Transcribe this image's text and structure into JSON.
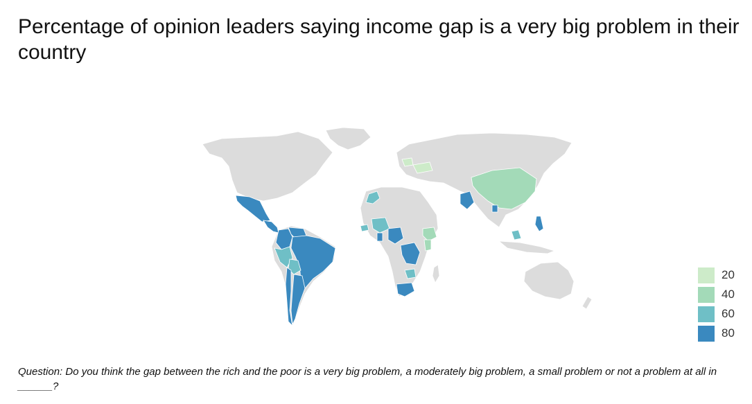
{
  "title": "Percentage of opinion leaders saying income gap is a very big problem in their country",
  "question": "Question: Do you think the gap between the rich and the poor is a very big problem, a moderately big problem, a small problem or not a problem at all in ______?",
  "colors": {
    "no_data": "#dcdcdc",
    "border": "#ffffff",
    "scale": [
      "#cdebc9",
      "#a3dab8",
      "#6fbfc6",
      "#3a89bf"
    ]
  },
  "legend": {
    "items": [
      {
        "label": "20",
        "color": "#cdebc9"
      },
      {
        "label": "40",
        "color": "#a3dab8"
      },
      {
        "label": "60",
        "color": "#6fbfc6"
      },
      {
        "label": "80",
        "color": "#3a89bf"
      }
    ]
  },
  "chart_data": {
    "type": "choropleth",
    "scale_ticks": [
      20,
      40,
      60,
      80
    ],
    "regions": [
      {
        "name": "Mexico",
        "value": 80
      },
      {
        "name": "Central America",
        "value": 80
      },
      {
        "name": "Colombia",
        "value": 80
      },
      {
        "name": "Venezuela",
        "value": 80
      },
      {
        "name": "Brazil",
        "value": 80
      },
      {
        "name": "Peru",
        "value": 60
      },
      {
        "name": "Bolivia",
        "value": 60
      },
      {
        "name": "Argentina",
        "value": 80
      },
      {
        "name": "Chile",
        "value": 80
      },
      {
        "name": "Nigeria",
        "value": 80
      },
      {
        "name": "DR Congo",
        "value": 80
      },
      {
        "name": "Senegal",
        "value": 60
      },
      {
        "name": "Mali",
        "value": 60
      },
      {
        "name": "Ghana",
        "value": 80
      },
      {
        "name": "Morocco",
        "value": 60
      },
      {
        "name": "Ethiopia",
        "value": 40
      },
      {
        "name": "Kenya",
        "value": 40
      },
      {
        "name": "South Africa",
        "value": 80
      },
      {
        "name": "Zambia",
        "value": 60
      },
      {
        "name": "Pakistan",
        "value": 80
      },
      {
        "name": "China",
        "value": 40
      },
      {
        "name": "Bangladesh",
        "value": 80
      },
      {
        "name": "Malaysia",
        "value": 60
      },
      {
        "name": "Philippines",
        "value": 80
      },
      {
        "name": "Poland",
        "value": 20
      },
      {
        "name": "Ukraine",
        "value": 20
      }
    ]
  }
}
